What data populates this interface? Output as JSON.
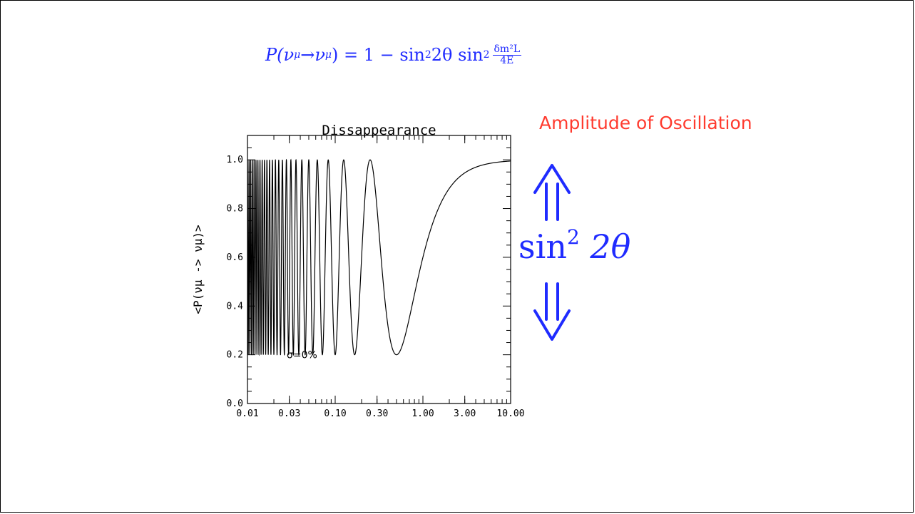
{
  "formula": {
    "lhs": "P(",
    "nu1": "ν",
    "mu1": "μ",
    "arrow": " → ",
    "nu2": "ν",
    "mu2": "μ",
    "eq": ") = 1 − sin",
    "sq1": "2",
    "theta_part": " 2θ sin",
    "sq2": "2",
    "frac_num": "δm²L",
    "frac_den": "4E"
  },
  "annotations": {
    "amplitude": "Amplitude of Oscillation",
    "sin_text": "sin",
    "sin_sup": "2",
    "sin_arg": "2θ",
    "up_arrow_icon": "double-up-arrow",
    "down_arrow_icon": "double-down-arrow",
    "accent_blue": "#1f2bff",
    "accent_red": "#ff3b2f"
  },
  "chart_data": {
    "type": "line",
    "title": "Dissappearance",
    "xlabel": "",
    "ylabel": "<P(νμ -> νμ)>",
    "xscale": "log",
    "xlim": [
      0.01,
      10.0
    ],
    "ylim": [
      0.0,
      1.1
    ],
    "xticks": [
      "0.01",
      "0.03",
      "0.10",
      "0.30",
      "1.00",
      "3.00",
      "10.00"
    ],
    "xtick_values": [
      0.01,
      0.03,
      0.1,
      0.3,
      1.0,
      3.0,
      10.0
    ],
    "yticks": [
      "0.0",
      "0.2",
      "0.4",
      "0.6",
      "0.8",
      "1.0"
    ],
    "ytick_values": [
      0.0,
      0.2,
      0.4,
      0.6,
      0.8,
      1.0
    ],
    "annotation": "σ=0%",
    "series": [
      {
        "function": "1 - sin2_2theta * sin^2(pi/2 / x)",
        "sin2_2theta": 0.8,
        "minimum": {
          "x": 0.5,
          "y": 0.2
        }
      }
    ],
    "grid": false
  }
}
